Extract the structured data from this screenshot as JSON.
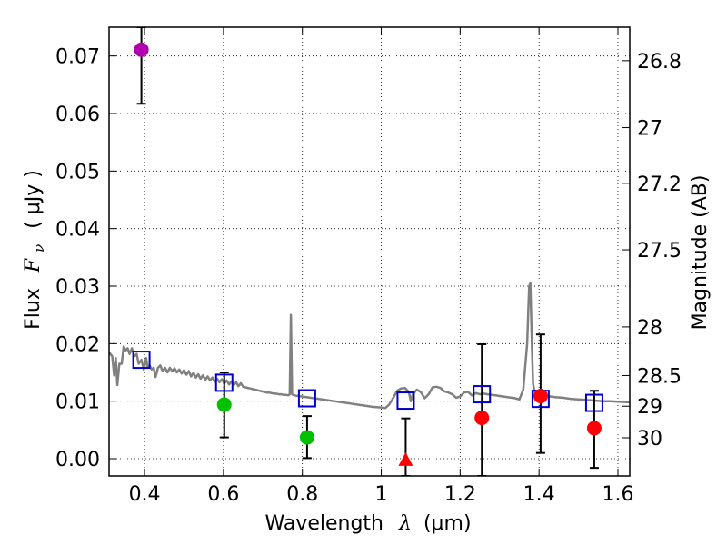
{
  "chart_data": {
    "type": "scatter",
    "xlabel": "Wavelength",
    "xlabel_symbol": "λ",
    "xlabel_unit": "(μm)",
    "ylabel": "Flux",
    "ylabel_symbol": "F",
    "ylabel_subscript": "ν",
    "ylabel_unit": "( μJy )",
    "y2label": "Magnitude (AB)",
    "xlim": [
      0.31,
      1.63
    ],
    "ylim": [
      -0.003,
      0.075
    ],
    "grid": true,
    "x_ticks": [
      0.4,
      0.6,
      0.8,
      1.0,
      1.2,
      1.4,
      1.6
    ],
    "x_tick_labels": [
      "0.4",
      "0.6",
      "0.8",
      "1",
      "1.2",
      "1.4",
      "1.6"
    ],
    "y_ticks": [
      0.0,
      0.01,
      0.02,
      0.03,
      0.04,
      0.05,
      0.06,
      0.07
    ],
    "y_tick_labels": [
      "0.00",
      "0.01",
      "0.02",
      "0.03",
      "0.04",
      "0.05",
      "0.06",
      "0.07"
    ],
    "y2_ticks": [
      {
        "label": "26.8",
        "mag": 26.8
      },
      {
        "label": "27",
        "mag": 27.0
      },
      {
        "label": "27.2",
        "mag": 27.2
      },
      {
        "label": "27.5",
        "mag": 27.5
      },
      {
        "label": "28",
        "mag": 28.0
      },
      {
        "label": "28.5",
        "mag": 28.5
      },
      {
        "label": "29",
        "mag": 29.0
      },
      {
        "label": "30",
        "mag": 30.0
      }
    ],
    "series": [
      {
        "name": "model spectrum",
        "type": "line",
        "color": "#808080",
        "points": [
          [
            0.31,
            0.0185
          ],
          [
            0.318,
            0.0178
          ],
          [
            0.323,
            0.0145
          ],
          [
            0.327,
            0.0175
          ],
          [
            0.331,
            0.0128
          ],
          [
            0.336,
            0.0165
          ],
          [
            0.342,
            0.0165
          ],
          [
            0.347,
            0.0195
          ],
          [
            0.352,
            0.0188
          ],
          [
            0.357,
            0.0192
          ],
          [
            0.362,
            0.0182
          ],
          [
            0.368,
            0.0192
          ],
          [
            0.374,
            0.0178
          ],
          [
            0.38,
            0.0182
          ],
          [
            0.385,
            0.0165
          ],
          [
            0.392,
            0.0172
          ],
          [
            0.398,
            0.0155
          ],
          [
            0.404,
            0.0175
          ],
          [
            0.408,
            0.0158
          ],
          [
            0.413,
            0.0162
          ],
          [
            0.418,
            0.0155
          ],
          [
            0.423,
            0.0158
          ],
          [
            0.428,
            0.0142
          ],
          [
            0.434,
            0.0158
          ],
          [
            0.44,
            0.0162
          ],
          [
            0.446,
            0.0152
          ],
          [
            0.452,
            0.0158
          ],
          [
            0.458,
            0.015
          ],
          [
            0.464,
            0.0158
          ],
          [
            0.47,
            0.0152
          ],
          [
            0.476,
            0.0157
          ],
          [
            0.482,
            0.015
          ],
          [
            0.488,
            0.0155
          ],
          [
            0.494,
            0.0148
          ],
          [
            0.5,
            0.0154
          ],
          [
            0.506,
            0.0146
          ],
          [
            0.512,
            0.0152
          ],
          [
            0.518,
            0.0143
          ],
          [
            0.524,
            0.0149
          ],
          [
            0.53,
            0.0141
          ],
          [
            0.536,
            0.0147
          ],
          [
            0.542,
            0.0139
          ],
          [
            0.548,
            0.0145
          ],
          [
            0.554,
            0.0137
          ],
          [
            0.56,
            0.0143
          ],
          [
            0.566,
            0.0136
          ],
          [
            0.572,
            0.0141
          ],
          [
            0.578,
            0.0134
          ],
          [
            0.584,
            0.0139
          ],
          [
            0.59,
            0.0133
          ],
          [
            0.596,
            0.0138
          ],
          [
            0.602,
            0.0131
          ],
          [
            0.608,
            0.0136
          ],
          [
            0.614,
            0.0129
          ],
          [
            0.62,
            0.0134
          ],
          [
            0.626,
            0.0128
          ],
          [
            0.632,
            0.0133
          ],
          [
            0.638,
            0.0126
          ],
          [
            0.644,
            0.0131
          ],
          [
            0.65,
            0.0125
          ],
          [
            0.656,
            0.0124
          ],
          [
            0.662,
            0.0123
          ],
          [
            0.668,
            0.0122
          ],
          [
            0.674,
            0.0121
          ],
          [
            0.68,
            0.012
          ],
          [
            0.686,
            0.0119
          ],
          [
            0.692,
            0.0118
          ],
          [
            0.698,
            0.0117
          ],
          [
            0.704,
            0.0116
          ],
          [
            0.71,
            0.0115
          ],
          [
            0.716,
            0.0115
          ],
          [
            0.722,
            0.0114
          ],
          [
            0.728,
            0.0113
          ],
          [
            0.734,
            0.0113
          ],
          [
            0.74,
            0.0112
          ],
          [
            0.746,
            0.0112
          ],
          [
            0.752,
            0.0111
          ],
          [
            0.758,
            0.0111
          ],
          [
            0.764,
            0.011
          ],
          [
            0.768,
            0.0112
          ],
          [
            0.771,
            0.025
          ],
          [
            0.774,
            0.0112
          ],
          [
            0.78,
            0.011
          ],
          [
            0.79,
            0.0109
          ],
          [
            0.8,
            0.0108
          ],
          [
            0.82,
            0.0106
          ],
          [
            0.84,
            0.0104
          ],
          [
            0.86,
            0.0102
          ],
          [
            0.88,
            0.01
          ],
          [
            0.9,
            0.0098
          ],
          [
            0.92,
            0.0096
          ],
          [
            0.94,
            0.0094
          ],
          [
            0.96,
            0.0092
          ],
          [
            0.98,
            0.009
          ],
          [
            1.0,
            0.0089
          ],
          [
            1.01,
            0.0088
          ],
          [
            1.02,
            0.0094
          ],
          [
            1.03,
            0.0105
          ],
          [
            1.04,
            0.0118
          ],
          [
            1.05,
            0.0122
          ],
          [
            1.06,
            0.0123
          ],
          [
            1.07,
            0.0116
          ],
          [
            1.075,
            0.01
          ],
          [
            1.08,
            0.0112
          ],
          [
            1.09,
            0.012
          ],
          [
            1.1,
            0.0116
          ],
          [
            1.11,
            0.0105
          ],
          [
            1.12,
            0.0112
          ],
          [
            1.13,
            0.0124
          ],
          [
            1.14,
            0.0125
          ],
          [
            1.15,
            0.0123
          ],
          [
            1.16,
            0.0117
          ],
          [
            1.17,
            0.0115
          ],
          [
            1.18,
            0.0112
          ],
          [
            1.19,
            0.0106
          ],
          [
            1.2,
            0.0108
          ],
          [
            1.21,
            0.0115
          ],
          [
            1.22,
            0.0116
          ],
          [
            1.23,
            0.011
          ],
          [
            1.24,
            0.0114
          ],
          [
            1.25,
            0.0112
          ],
          [
            1.26,
            0.0113
          ],
          [
            1.27,
            0.0112
          ],
          [
            1.28,
            0.0111
          ],
          [
            1.29,
            0.011
          ],
          [
            1.3,
            0.0109
          ],
          [
            1.31,
            0.0108
          ],
          [
            1.32,
            0.0107
          ],
          [
            1.33,
            0.0106
          ],
          [
            1.34,
            0.0105
          ],
          [
            1.35,
            0.0103
          ],
          [
            1.36,
            0.012
          ],
          [
            1.37,
            0.02
          ],
          [
            1.375,
            0.03
          ],
          [
            1.378,
            0.0305
          ],
          [
            1.382,
            0.02
          ],
          [
            1.385,
            0.013
          ],
          [
            1.39,
            0.0112
          ],
          [
            1.4,
            0.011
          ],
          [
            1.42,
            0.0109
          ],
          [
            1.44,
            0.0107
          ],
          [
            1.46,
            0.0106
          ],
          [
            1.48,
            0.0104
          ],
          [
            1.5,
            0.0103
          ],
          [
            1.52,
            0.0102
          ],
          [
            1.54,
            0.0101
          ],
          [
            1.56,
            0.01
          ],
          [
            1.58,
            0.01
          ],
          [
            1.6,
            0.0099
          ],
          [
            1.63,
            0.0098
          ]
        ]
      },
      {
        "name": "model photometry",
        "type": "scatter",
        "marker": "open-square",
        "color": "#0000cc",
        "points": [
          [
            0.392,
            0.0172
          ],
          [
            0.602,
            0.0132
          ],
          [
            0.812,
            0.0105
          ],
          [
            1.062,
            0.0101
          ],
          [
            1.255,
            0.0112
          ],
          [
            1.404,
            0.0104
          ],
          [
            1.54,
            0.0097
          ]
        ]
      },
      {
        "name": "error bars",
        "type": "errorbar",
        "color": "#000000",
        "bars": [
          {
            "x": 0.392,
            "low": 0.0617,
            "high": 0.075
          },
          {
            "x": 0.602,
            "low": 0.0037,
            "high": 0.015
          },
          {
            "x": 0.812,
            "low": 0.0001,
            "high": 0.0074
          },
          {
            "x": 1.062,
            "low": -0.003,
            "high": 0.007
          },
          {
            "x": 1.255,
            "low": -0.003,
            "high": 0.0199
          },
          {
            "x": 1.404,
            "low": 0.001,
            "high": 0.0216
          },
          {
            "x": 1.54,
            "low": -0.0016,
            "high": 0.0118
          }
        ]
      },
      {
        "name": "observed (magenta)",
        "type": "scatter",
        "marker": "circle",
        "color": "#b000b0",
        "points": [
          [
            0.392,
            0.0711
          ]
        ]
      },
      {
        "name": "observed (green)",
        "type": "scatter",
        "marker": "circle",
        "color": "#00c000",
        "points": [
          [
            0.602,
            0.0094
          ],
          [
            0.812,
            0.0037
          ]
        ]
      },
      {
        "name": "observed (red)",
        "type": "scatter",
        "marker": "circle",
        "color": "#ff0000",
        "points": [
          [
            1.255,
            0.0071
          ],
          [
            1.404,
            0.0109
          ],
          [
            1.54,
            0.0053
          ]
        ]
      },
      {
        "name": "upper limit",
        "type": "scatter",
        "marker": "triangle",
        "color": "#ff0000",
        "points": [
          [
            1.062,
            -0.0003
          ]
        ]
      }
    ]
  }
}
